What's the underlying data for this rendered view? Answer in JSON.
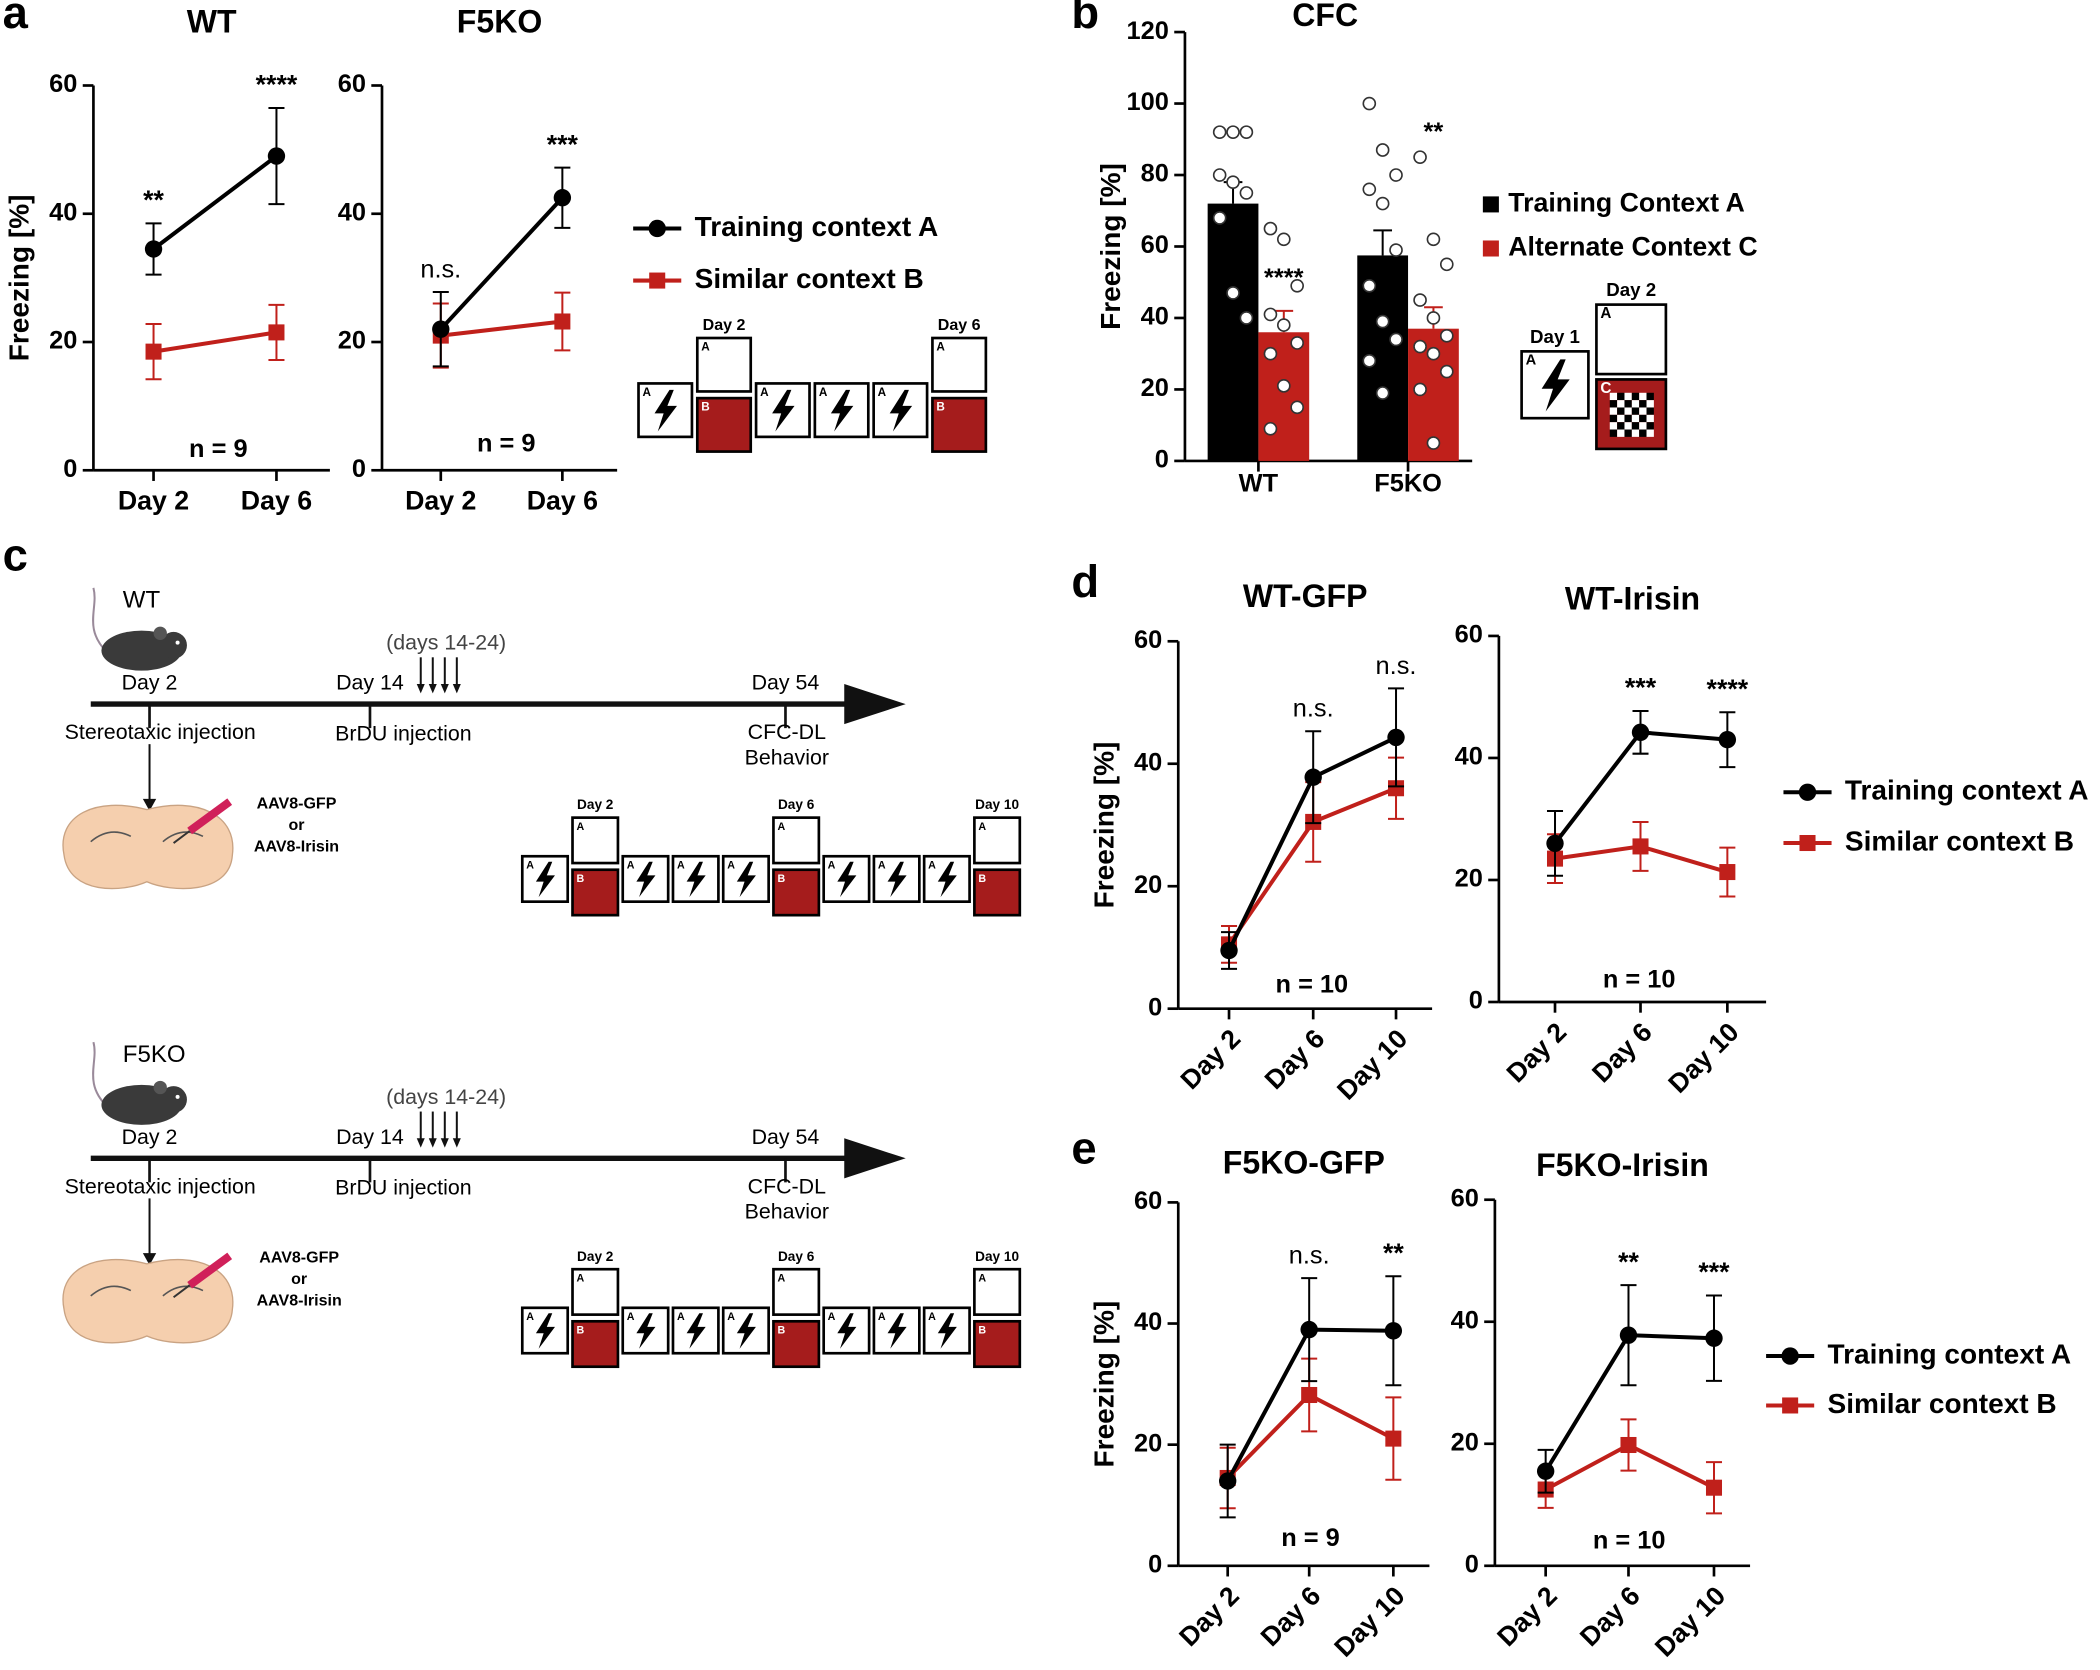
{
  "panel_labels": [
    "a",
    "b",
    "c",
    "d",
    "e"
  ],
  "chart_data": [
    {
      "type": "line",
      "title": "WT",
      "y_label": "Freezing [%]",
      "categories": [
        "Day 2",
        "Day 6"
      ],
      "ylim": [
        0,
        60
      ],
      "yticks": [
        0,
        20,
        40,
        60
      ],
      "series": [
        {
          "name": "Training context A",
          "color": "#000000",
          "marker": "circle",
          "values": [
            34.5,
            49
          ],
          "errors": [
            4,
            7.5
          ]
        },
        {
          "name": "Similar context B",
          "color": "#c0201b",
          "marker": "square",
          "values": [
            18.5,
            21.5
          ],
          "errors": [
            4.3,
            4.3
          ]
        }
      ],
      "annotations": [
        "**",
        "****"
      ],
      "n_label": "n = 9"
    },
    {
      "type": "line",
      "title": "F5KO",
      "categories": [
        "Day 2",
        "Day 6"
      ],
      "ylim": [
        0,
        60
      ],
      "yticks": [
        0,
        20,
        40,
        60
      ],
      "series": [
        {
          "name": "Training context A",
          "color": "#000000",
          "marker": "circle",
          "values": [
            22,
            42.5
          ],
          "errors": [
            5.8,
            4.7
          ]
        },
        {
          "name": "Similar context B",
          "color": "#c0201b",
          "marker": "square",
          "values": [
            21,
            23.2
          ],
          "errors": [
            5,
            4.5
          ]
        }
      ],
      "annotations": [
        "n.s.",
        "***"
      ],
      "n_label": "n = 9"
    },
    {
      "type": "bar",
      "title": "CFC",
      "y_label": "Freezing [%]",
      "categories": [
        "WT",
        "F5KO"
      ],
      "ylim": [
        0,
        120
      ],
      "yticks": [
        0,
        20,
        40,
        60,
        80,
        100,
        120
      ],
      "series": [
        {
          "name": "Training Context A",
          "color": "#000000",
          "values": [
            72,
            57.5
          ],
          "errors": [
            6,
            7
          ],
          "points": [
            [
              92,
              92,
              92,
              80,
              78,
              75,
              68,
              47,
              40
            ],
            [
              100,
              87,
              80,
              76,
              72,
              59,
              49,
              39,
              34,
              28,
              19
            ]
          ]
        },
        {
          "name": "Alternate Context C",
          "color": "#c0201b",
          "values": [
            36,
            37
          ],
          "errors": [
            6,
            6
          ],
          "points": [
            [
              65,
              62,
              49,
              41,
              38,
              33,
              30,
              21,
              15,
              9
            ],
            [
              85,
              62,
              55,
              45,
              40,
              35,
              32,
              30,
              25,
              20,
              5
            ]
          ]
        }
      ],
      "annotations": [
        "****",
        "**"
      ]
    },
    {
      "type": "line",
      "title": "WT-GFP",
      "y_label": "Freezing [%]",
      "categories": [
        "Day 2",
        "Day 6",
        "Day 10"
      ],
      "ylim": [
        0,
        60
      ],
      "yticks": [
        0,
        20,
        40,
        60
      ],
      "series": [
        {
          "name": "Training context A",
          "color": "#000000",
          "marker": "circle",
          "values": [
            9.5,
            37.8,
            44.3
          ],
          "errors": [
            3,
            7.5,
            8
          ]
        },
        {
          "name": "Similar context B",
          "color": "#c0201b",
          "marker": "square",
          "values": [
            10.5,
            30.5,
            36
          ],
          "errors": [
            3,
            6.5,
            5
          ]
        }
      ],
      "annotations": [
        null,
        "n.s.",
        "n.s."
      ],
      "n_label": "n = 10"
    },
    {
      "type": "line",
      "title": "WT-Irisin",
      "categories": [
        "Day 2",
        "Day 6",
        "Day 10"
      ],
      "ylim": [
        0,
        60
      ],
      "yticks": [
        0,
        20,
        40,
        60
      ],
      "series": [
        {
          "name": "Training context A",
          "color": "#000000",
          "marker": "circle",
          "values": [
            26,
            44.2,
            43
          ],
          "errors": [
            5.3,
            3.5,
            4.5
          ]
        },
        {
          "name": "Similar context B",
          "color": "#c0201b",
          "marker": "square",
          "values": [
            23.5,
            25.5,
            21.3
          ],
          "errors": [
            4,
            4,
            4
          ]
        }
      ],
      "annotations": [
        null,
        "***",
        "****"
      ],
      "n_label": "n = 10"
    },
    {
      "type": "line",
      "title": "F5KO-GFP",
      "y_label": "Freezing [%]",
      "categories": [
        "Day 2",
        "Day 6",
        "Day 10"
      ],
      "ylim": [
        0,
        60
      ],
      "yticks": [
        0,
        20,
        40,
        60
      ],
      "series": [
        {
          "name": "Training context A",
          "color": "#000000",
          "marker": "circle",
          "values": [
            14,
            39,
            38.8
          ],
          "errors": [
            6,
            8.5,
            9
          ]
        },
        {
          "name": "Similar context B",
          "color": "#c0201b",
          "marker": "square",
          "values": [
            14.5,
            28.2,
            21
          ],
          "errors": [
            5,
            6,
            6.8
          ]
        }
      ],
      "annotations": [
        null,
        "n.s.",
        "**"
      ],
      "n_label": "n = 9"
    },
    {
      "type": "line",
      "title": "F5KO-Irisin",
      "categories": [
        "Day 2",
        "Day 6",
        "Day 10"
      ],
      "ylim": [
        0,
        60
      ],
      "yticks": [
        0,
        20,
        40,
        60
      ],
      "series": [
        {
          "name": "Training context A",
          "color": "#000000",
          "marker": "circle",
          "values": [
            15.5,
            37.8,
            37.3
          ],
          "errors": [
            3.5,
            8.2,
            7
          ]
        },
        {
          "name": "Similar context B",
          "color": "#c0201b",
          "marker": "square",
          "values": [
            12.5,
            19.8,
            12.8
          ],
          "errors": [
            3,
            4.2,
            4.2
          ]
        }
      ],
      "annotations": [
        null,
        "**",
        "***"
      ],
      "n_label": "n = 10"
    }
  ],
  "schematic_a": {
    "days": [
      "Day 2",
      "Day 6"
    ],
    "contexts": [
      "A",
      "B"
    ]
  },
  "schematic_b": {
    "days": [
      "Day 1",
      "Day 2"
    ],
    "contexts": [
      "A",
      "C"
    ]
  },
  "panel_c": {
    "genotypes": [
      "WT",
      "F5KO"
    ],
    "timepoints": [
      "Day 2",
      "Day 14",
      "Day 54"
    ],
    "injection_range": "(days 14-24)",
    "events": [
      "Stereotaxic injection",
      "BrDU injection",
      "CFC-DL",
      "Behavior"
    ],
    "vectors": [
      "AAV8-GFP",
      "or",
      "AAV8-Irisin"
    ],
    "schematic_days": [
      "Day 2",
      "Day 6",
      "Day 10"
    ],
    "contexts": [
      "A",
      "B"
    ]
  }
}
